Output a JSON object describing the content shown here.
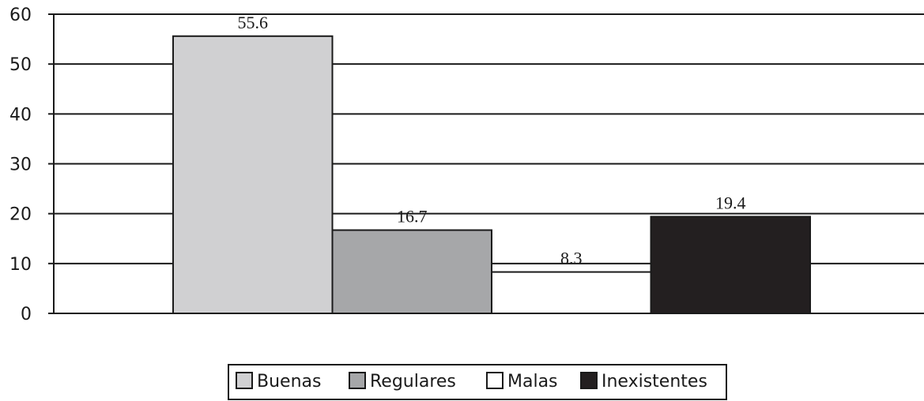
{
  "chart_data": {
    "type": "bar",
    "categories": [
      ""
    ],
    "series": [
      {
        "name": "Buenas",
        "values": [
          55.6
        ],
        "color": "#d0d0d2"
      },
      {
        "name": "Regulares",
        "values": [
          16.7
        ],
        "color": "#a6a7a9"
      },
      {
        "name": "Malas",
        "values": [
          8.3
        ],
        "color": "#ffffff"
      },
      {
        "name": "Inexistentes",
        "values": [
          19.4
        ],
        "color": "#231f20"
      }
    ],
    "data_labels": [
      "55.6",
      "16.7",
      "8.3",
      "19.4"
    ],
    "ylim": [
      0,
      60
    ],
    "yticks": [
      0,
      10,
      20,
      30,
      40,
      50,
      60
    ],
    "ytick_labels": [
      "0",
      "10",
      "20",
      "30",
      "40",
      "50",
      "60"
    ],
    "grid": true,
    "legend": "bottom-center",
    "title": "",
    "xlabel": "",
    "ylabel": ""
  }
}
